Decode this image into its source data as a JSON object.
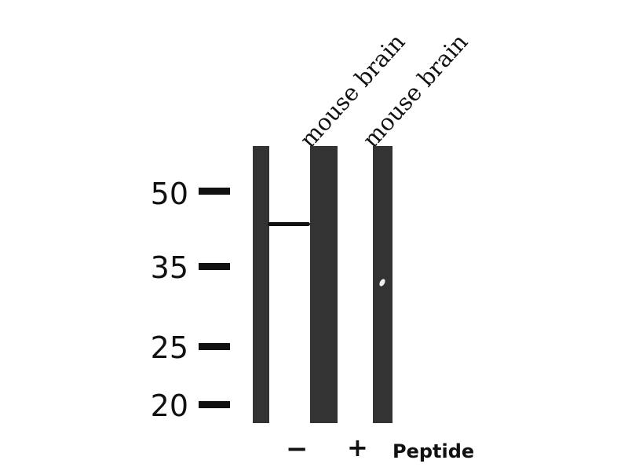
{
  "samples": [
    {
      "label": "mouse brain",
      "peptide": "−"
    },
    {
      "label": "mouse brain",
      "peptide": "+"
    }
  ],
  "peptide_label": "Peptide",
  "mw_markers": [
    "50",
    "35",
    "25",
    "20"
  ],
  "colors": {
    "lane": "#333333",
    "band": "#111111"
  }
}
